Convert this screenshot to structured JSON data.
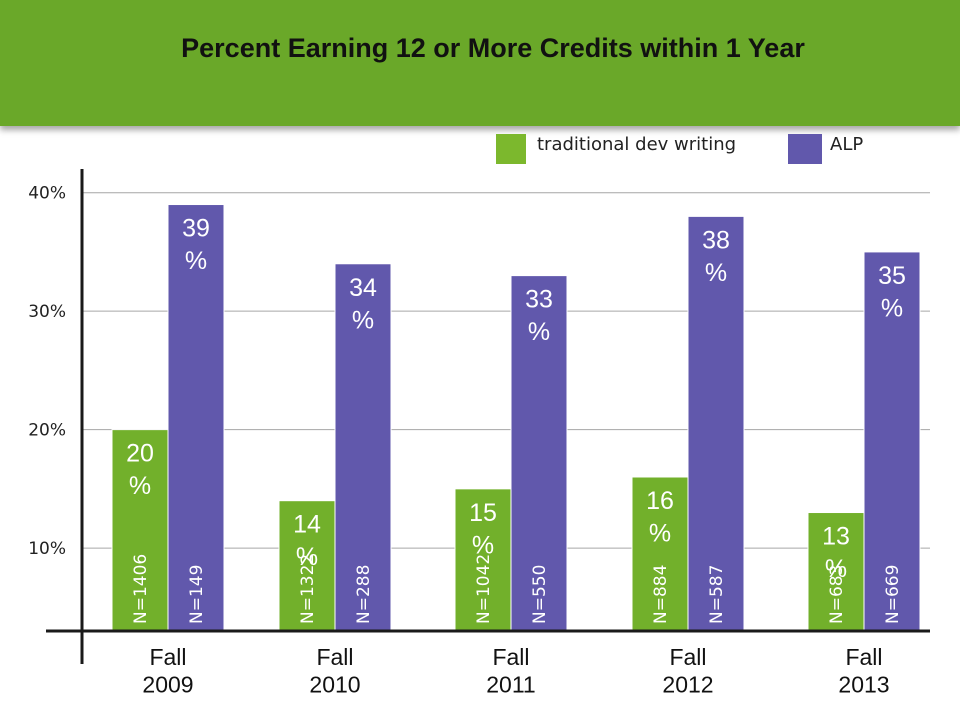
{
  "title": "Percent Earning 12 or More Credits within 1 Year",
  "colors": {
    "banner": "#6aa829",
    "traditional": "#72b02b",
    "alp": "#6158ac"
  },
  "chart_data": {
    "type": "bar",
    "title": "Percent Earning 12 or More Credits within 1 Year",
    "categories": [
      [
        "Fall",
        "2009"
      ],
      [
        "Fall",
        "2010"
      ],
      [
        "Fall",
        "2011"
      ],
      [
        "Fall",
        "2012"
      ],
      [
        "Fall",
        "2013"
      ]
    ],
    "series": [
      {
        "name": "traditional dev writing",
        "values": [
          20,
          14,
          15,
          16,
          13
        ],
        "labels": [
          "20 %",
          "14 %",
          "15 %",
          "16 %",
          "13 %"
        ],
        "n": [
          "N=1406",
          "N=1322",
          "N=1042",
          "N=884",
          "N=683"
        ]
      },
      {
        "name": "ALP",
        "values": [
          39,
          34,
          33,
          38,
          35
        ],
        "labels": [
          "39 %",
          "34 %",
          "33 %",
          "38 %",
          "35 %"
        ],
        "n": [
          "N=149",
          "N=288",
          "N=550",
          "N=587",
          "N=669"
        ]
      }
    ],
    "yticks": [
      10,
      20,
      30,
      40
    ],
    "ytick_labels": [
      "10%",
      "20%",
      "30%",
      "40%"
    ],
    "ylim": [
      3,
      42
    ],
    "grid": true,
    "legend_position": "top-right"
  }
}
